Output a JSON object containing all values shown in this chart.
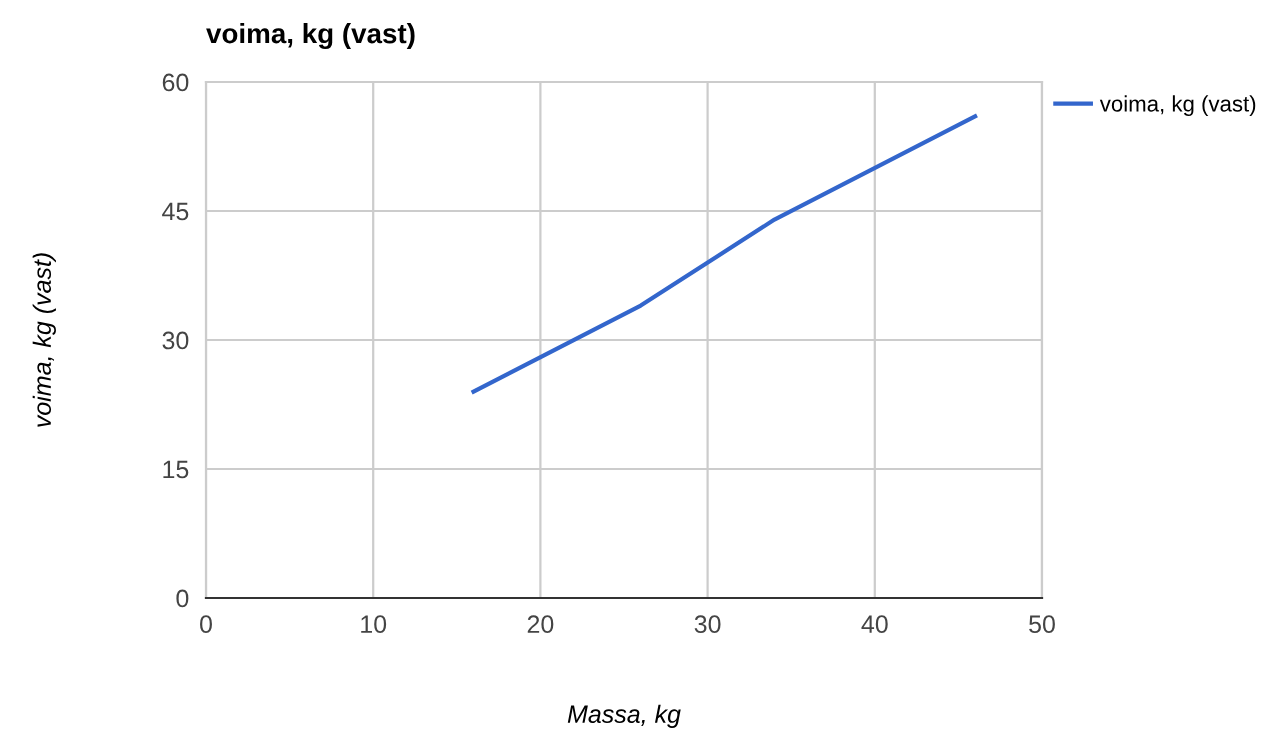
{
  "chart_data": {
    "type": "line",
    "title": "voima, kg (vast)",
    "xlabel": "Massa, kg",
    "ylabel": "voima, kg (vast)",
    "x": [
      16,
      26,
      34,
      46
    ],
    "series": [
      {
        "name": "voima, kg (vast)",
        "color": "#3366cc",
        "values": [
          24,
          34,
          44,
          56
        ]
      }
    ],
    "xlim": [
      0,
      50
    ],
    "xticks": [
      0,
      10,
      20,
      30,
      40,
      50
    ],
    "ylim": [
      0,
      60
    ],
    "yticks": [
      0,
      15,
      30,
      45,
      60
    ],
    "grid": true,
    "legend": "top right",
    "marker": "none",
    "line_style": "solid"
  }
}
